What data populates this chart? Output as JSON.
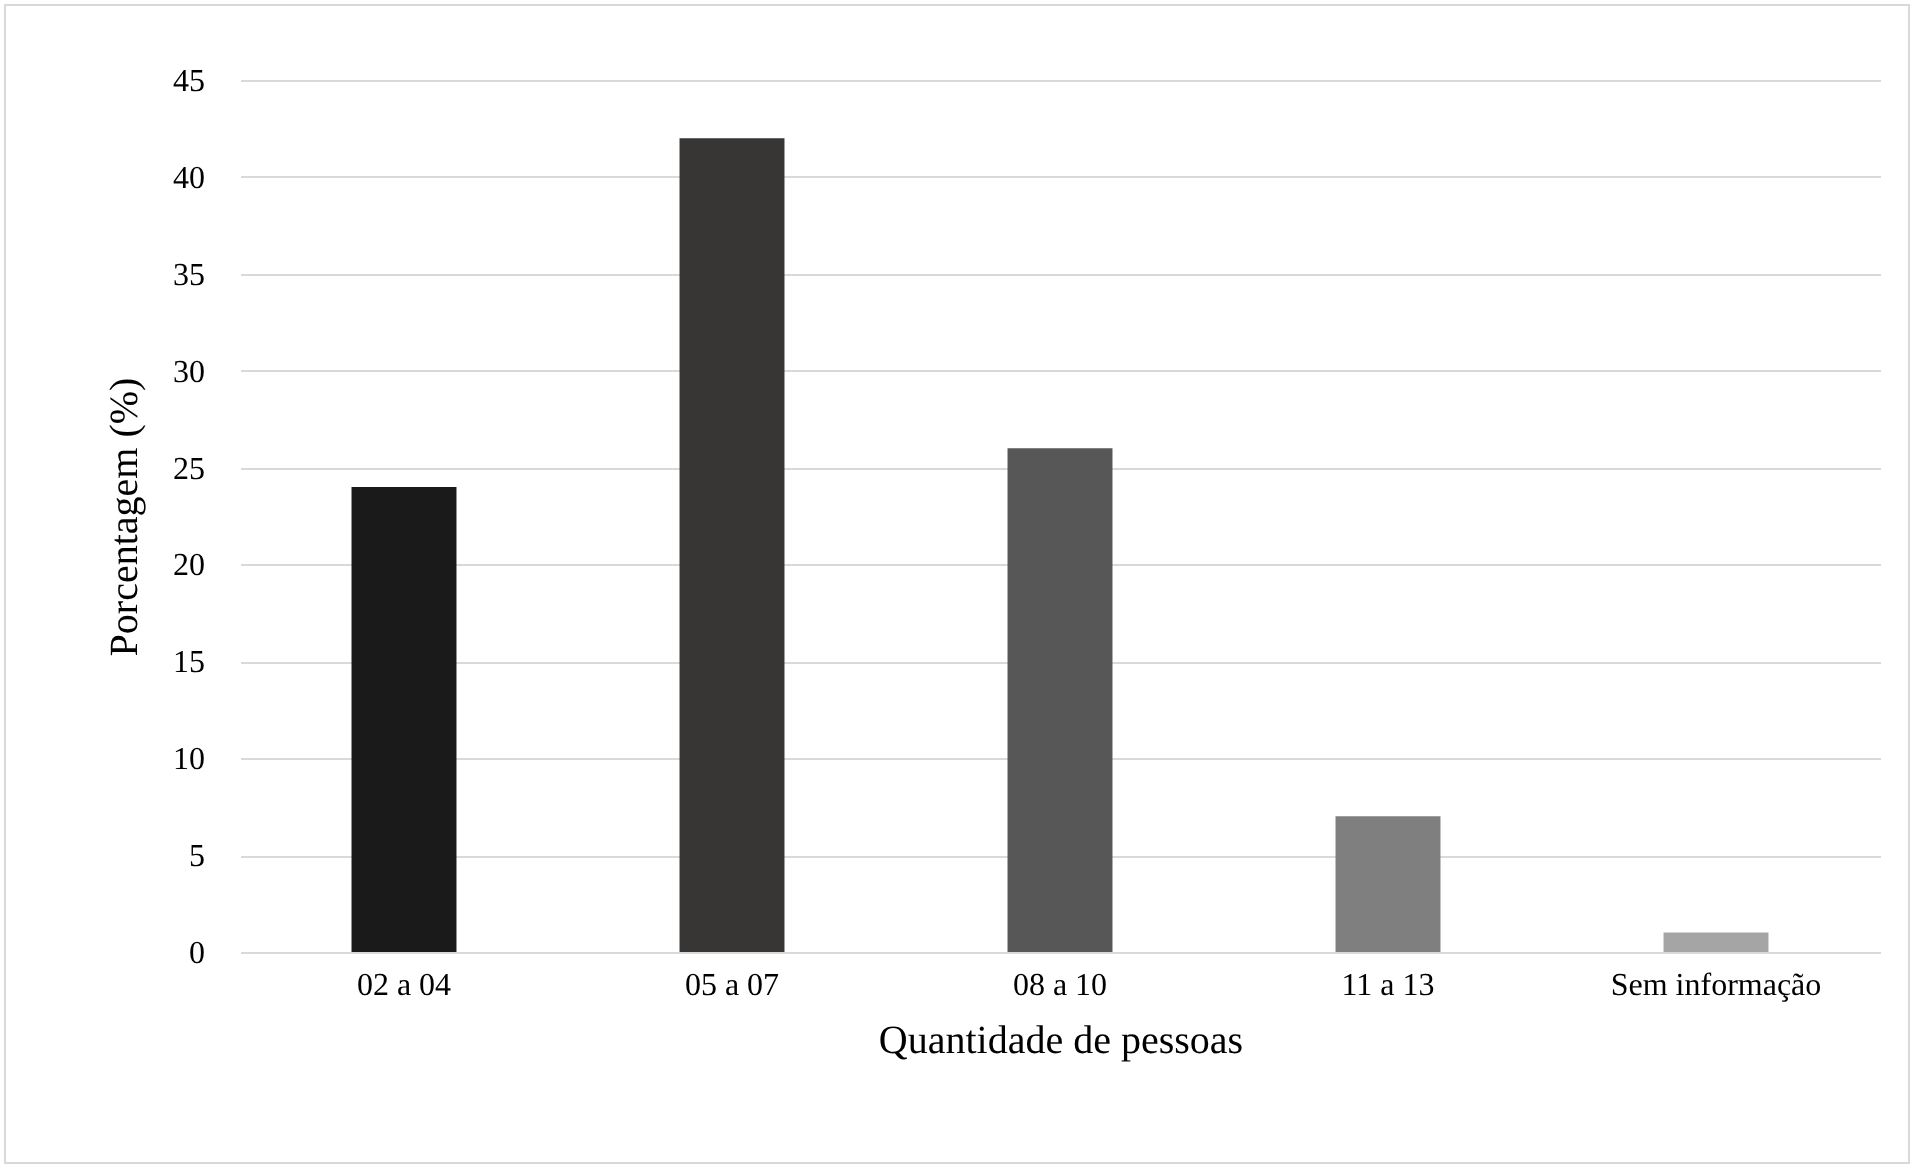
{
  "chart_data": {
    "type": "bar",
    "xlabel": "Quantidade de pessoas",
    "ylabel": "Porcentagem (%)",
    "categories": [
      "02 a 04",
      "05 a 07",
      "08 a 10",
      "11 a 13",
      "Sem informação"
    ],
    "values": [
      24,
      42,
      26,
      7,
      1
    ],
    "colors": [
      "#1a1a1a",
      "#383634",
      "#575757",
      "#7f7f7f",
      "#a5a5a5"
    ],
    "ylim": [
      0,
      45
    ],
    "yticks": [
      0,
      5,
      10,
      15,
      20,
      25,
      30,
      35,
      40,
      45
    ],
    "grid": "y"
  }
}
